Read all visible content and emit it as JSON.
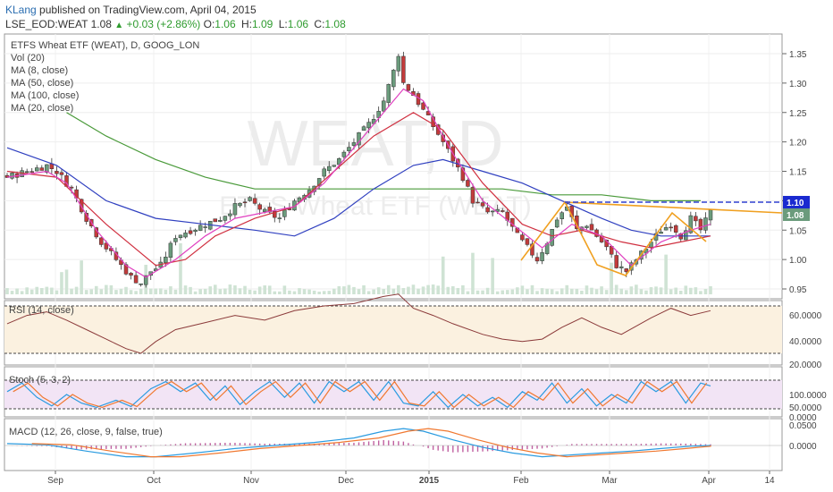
{
  "header": {
    "author": "KLang",
    "published_text": "published on TradingView.com, April 04, 2015",
    "symbol": "LSE_EOD:WEAT",
    "last": "1.08",
    "change": "+0.03 (+2.86%)",
    "o_label": "O:",
    "o_val": "1.06",
    "h_label": "H:",
    "h_val": "1.09",
    "l_label": "L:",
    "l_val": "1.06",
    "c_label": "C:",
    "c_val": "1.08"
  },
  "legend": {
    "title": "ETFS Wheat ETF (WEAT), D, GOOG_LON",
    "vol": "Vol (20)",
    "ma8": "MA (8, close)",
    "ma50": "MA (50, close)",
    "ma100": "MA (100, close)",
    "ma20": "MA (20, close)"
  },
  "watermark": {
    "big": "WEAT, D",
    "small": "ETFS Wheat ETF (WEAT)"
  },
  "panes": {
    "rsi": "RSI (14, close)",
    "stoch": "Stoch (5, 3, 2)",
    "macd": "MACD (12, 26, close, 9, false, true)"
  },
  "colors": {
    "up": "#6b9b7c",
    "down": "#c23b3b",
    "ma8": "#e040c0",
    "ma20": "#d03040",
    "ma50": "#3040c0",
    "ma100": "#4a9a3a",
    "pattern": "#f0a020",
    "neck": "#3040d0",
    "rsi": "#8b3a3a",
    "stochK": "#2a9be0",
    "stochD": "#f07830",
    "macd": "#2a9be0",
    "signal": "#f07830",
    "hist": "#c060a0"
  },
  "chart_data": {
    "type": "candlestick",
    "price_axis": {
      "ticks": [
        "1.35",
        "1.30",
        "1.25",
        "1.20",
        "1.15",
        "1.10",
        "1.05",
        "1.00",
        "0.95"
      ],
      "range": [
        0.94,
        1.37
      ]
    },
    "price_labels": [
      {
        "text": "1.10",
        "bg": "#1a2ad0"
      },
      {
        "text": "1.08",
        "bg": "#6b9b7c"
      }
    ],
    "rsi_axis": {
      "ticks": [
        "60.0000",
        "40.0000",
        "20.0000"
      ]
    },
    "stoch_axis": {
      "ticks": [
        "100.0000",
        "50.0000",
        "0.0000"
      ]
    },
    "macd_axis": {
      "ticks": [
        "0.0500",
        "0.0000"
      ]
    },
    "time_axis": {
      "ticks": [
        "Sep",
        "Oct",
        "Nov",
        "Dec",
        "2015",
        "Feb",
        "Mar",
        "Apr",
        "14"
      ]
    },
    "price_path": [
      [
        0,
        1.14
      ],
      [
        4,
        1.15
      ],
      [
        8,
        1.16
      ],
      [
        10,
        1.15
      ],
      [
        13,
        1.12
      ],
      [
        16,
        1.07
      ],
      [
        19,
        1.03
      ],
      [
        22,
        1.0
      ],
      [
        25,
        0.97
      ],
      [
        27,
        0.96
      ],
      [
        29,
        0.98
      ],
      [
        31,
        0.99
      ],
      [
        34,
        1.04
      ],
      [
        37,
        1.05
      ],
      [
        40,
        1.06
      ],
      [
        43,
        1.07
      ],
      [
        46,
        1.09
      ],
      [
        49,
        1.1
      ],
      [
        52,
        1.08
      ],
      [
        55,
        1.07
      ],
      [
        58,
        1.1
      ],
      [
        61,
        1.12
      ],
      [
        64,
        1.15
      ],
      [
        67,
        1.17
      ],
      [
        70,
        1.2
      ],
      [
        73,
        1.23
      ],
      [
        76,
        1.27
      ],
      [
        78,
        1.32
      ],
      [
        79,
        1.35
      ],
      [
        80,
        1.3
      ],
      [
        82,
        1.28
      ],
      [
        85,
        1.24
      ],
      [
        88,
        1.2
      ],
      [
        90,
        1.17
      ],
      [
        92,
        1.14
      ],
      [
        94,
        1.1
      ],
      [
        97,
        1.08
      ],
      [
        100,
        1.08
      ],
      [
        103,
        1.04
      ],
      [
        105,
        1.02
      ],
      [
        107,
        1.0
      ],
      [
        109,
        1.03
      ],
      [
        111,
        1.07
      ],
      [
        113,
        1.09
      ],
      [
        115,
        1.05
      ],
      [
        117,
        1.06
      ],
      [
        119,
        1.04
      ],
      [
        121,
        1.02
      ],
      [
        123,
        0.99
      ],
      [
        125,
        0.98
      ],
      [
        127,
        1.0
      ],
      [
        130,
        1.03
      ],
      [
        132,
        1.05
      ],
      [
        134,
        1.06
      ],
      [
        136,
        1.04
      ],
      [
        138,
        1.07
      ],
      [
        140,
        1.05
      ],
      [
        142,
        1.08
      ]
    ],
    "ma8_path": [
      [
        0,
        1.14
      ],
      [
        8,
        1.15
      ],
      [
        12,
        1.13
      ],
      [
        18,
        1.05
      ],
      [
        24,
        0.99
      ],
      [
        28,
        0.97
      ],
      [
        34,
        1.0
      ],
      [
        40,
        1.04
      ],
      [
        46,
        1.07
      ],
      [
        52,
        1.08
      ],
      [
        58,
        1.09
      ],
      [
        64,
        1.13
      ],
      [
        70,
        1.19
      ],
      [
        76,
        1.25
      ],
      [
        80,
        1.29
      ],
      [
        84,
        1.27
      ],
      [
        90,
        1.18
      ],
      [
        96,
        1.1
      ],
      [
        102,
        1.06
      ],
      [
        108,
        1.02
      ],
      [
        114,
        1.06
      ],
      [
        120,
        1.04
      ],
      [
        126,
        0.99
      ],
      [
        132,
        1.03
      ],
      [
        138,
        1.05
      ],
      [
        142,
        1.06
      ]
    ],
    "ma20_path": [
      [
        0,
        1.15
      ],
      [
        10,
        1.14
      ],
      [
        20,
        1.06
      ],
      [
        30,
        0.99
      ],
      [
        36,
        1.0
      ],
      [
        42,
        1.04
      ],
      [
        50,
        1.07
      ],
      [
        58,
        1.09
      ],
      [
        66,
        1.15
      ],
      [
        74,
        1.21
      ],
      [
        82,
        1.25
      ],
      [
        88,
        1.22
      ],
      [
        96,
        1.13
      ],
      [
        104,
        1.06
      ],
      [
        110,
        1.04
      ],
      [
        116,
        1.05
      ],
      [
        124,
        1.03
      ],
      [
        130,
        1.02
      ],
      [
        136,
        1.03
      ],
      [
        142,
        1.04
      ]
    ],
    "ma50_path": [
      [
        0,
        1.19
      ],
      [
        10,
        1.16
      ],
      [
        20,
        1.1
      ],
      [
        30,
        1.07
      ],
      [
        40,
        1.06
      ],
      [
        50,
        1.05
      ],
      [
        58,
        1.04
      ],
      [
        66,
        1.07
      ],
      [
        74,
        1.12
      ],
      [
        82,
        1.16
      ],
      [
        88,
        1.17
      ],
      [
        96,
        1.15
      ],
      [
        104,
        1.13
      ],
      [
        112,
        1.1
      ],
      [
        120,
        1.07
      ],
      [
        126,
        1.05
      ],
      [
        132,
        1.04
      ],
      [
        138,
        1.04
      ],
      [
        142,
        1.04
      ]
    ],
    "ma100_path": [
      [
        12,
        1.25
      ],
      [
        20,
        1.21
      ],
      [
        30,
        1.17
      ],
      [
        40,
        1.14
      ],
      [
        50,
        1.12
      ],
      [
        60,
        1.12
      ],
      [
        70,
        1.12
      ],
      [
        80,
        1.12
      ],
      [
        90,
        1.12
      ],
      [
        100,
        1.12
      ],
      [
        110,
        1.11
      ],
      [
        120,
        1.11
      ],
      [
        130,
        1.1
      ],
      [
        140,
        1.1
      ]
    ],
    "rsi_path": [
      [
        0,
        45
      ],
      [
        4,
        52
      ],
      [
        8,
        55
      ],
      [
        12,
        48
      ],
      [
        16,
        40
      ],
      [
        20,
        32
      ],
      [
        24,
        24
      ],
      [
        27,
        20
      ],
      [
        30,
        30
      ],
      [
        34,
        40
      ],
      [
        40,
        46
      ],
      [
        46,
        52
      ],
      [
        52,
        48
      ],
      [
        58,
        56
      ],
      [
        64,
        60
      ],
      [
        70,
        62
      ],
      [
        76,
        68
      ],
      [
        79,
        70
      ],
      [
        82,
        58
      ],
      [
        86,
        52
      ],
      [
        90,
        45
      ],
      [
        96,
        36
      ],
      [
        100,
        32
      ],
      [
        104,
        30
      ],
      [
        108,
        32
      ],
      [
        112,
        42
      ],
      [
        116,
        50
      ],
      [
        120,
        42
      ],
      [
        124,
        36
      ],
      [
        130,
        50
      ],
      [
        134,
        58
      ],
      [
        138,
        52
      ],
      [
        142,
        56
      ]
    ],
    "stoch_k_path": [
      [
        0,
        60
      ],
      [
        3,
        90
      ],
      [
        6,
        40
      ],
      [
        9,
        10
      ],
      [
        12,
        50
      ],
      [
        15,
        20
      ],
      [
        18,
        5
      ],
      [
        22,
        30
      ],
      [
        25,
        8
      ],
      [
        29,
        70
      ],
      [
        32,
        95
      ],
      [
        35,
        60
      ],
      [
        38,
        90
      ],
      [
        41,
        30
      ],
      [
        44,
        80
      ],
      [
        47,
        15
      ],
      [
        50,
        60
      ],
      [
        53,
        95
      ],
      [
        56,
        40
      ],
      [
        59,
        90
      ],
      [
        62,
        20
      ],
      [
        65,
        95
      ],
      [
        68,
        60
      ],
      [
        71,
        95
      ],
      [
        74,
        30
      ],
      [
        77,
        95
      ],
      [
        80,
        20
      ],
      [
        83,
        10
      ],
      [
        86,
        60
      ],
      [
        89,
        5
      ],
      [
        92,
        50
      ],
      [
        95,
        10
      ],
      [
        98,
        40
      ],
      [
        101,
        5
      ],
      [
        104,
        60
      ],
      [
        107,
        30
      ],
      [
        110,
        90
      ],
      [
        113,
        20
      ],
      [
        116,
        70
      ],
      [
        119,
        10
      ],
      [
        122,
        50
      ],
      [
        125,
        20
      ],
      [
        128,
        95
      ],
      [
        131,
        60
      ],
      [
        134,
        95
      ],
      [
        137,
        20
      ],
      [
        140,
        90
      ],
      [
        142,
        80
      ]
    ],
    "macd_path": [
      [
        0,
        0.005
      ],
      [
        8,
        0.002
      ],
      [
        16,
        -0.015
      ],
      [
        24,
        -0.03
      ],
      [
        30,
        -0.03
      ],
      [
        38,
        -0.02
      ],
      [
        46,
        -0.008
      ],
      [
        54,
        0.0
      ],
      [
        62,
        0.008
      ],
      [
        70,
        0.02
      ],
      [
        76,
        0.038
      ],
      [
        80,
        0.045
      ],
      [
        84,
        0.038
      ],
      [
        90,
        0.015
      ],
      [
        96,
        -0.005
      ],
      [
        102,
        -0.02
      ],
      [
        108,
        -0.03
      ],
      [
        114,
        -0.025
      ],
      [
        120,
        -0.02
      ],
      [
        126,
        -0.015
      ],
      [
        132,
        -0.008
      ],
      [
        138,
        -0.002
      ],
      [
        142,
        0.0
      ]
    ]
  }
}
